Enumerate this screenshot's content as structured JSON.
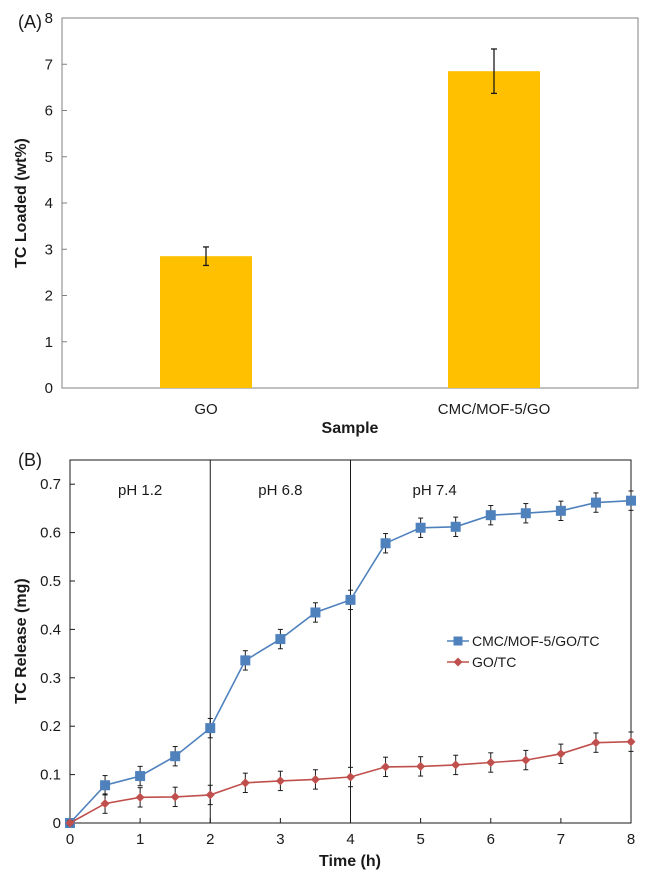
{
  "chart_data": [
    {
      "panel": "(A)",
      "type": "bar",
      "title": "",
      "xlabel": "Sample",
      "ylabel": "TC Loaded (wt%)",
      "ylim": [
        0,
        8
      ],
      "yticks": [
        "0",
        "1",
        "2",
        "3",
        "4",
        "5",
        "6",
        "7",
        "8"
      ],
      "categories": [
        "GO",
        "CMC/MOF-5/GO"
      ],
      "values": [
        2.85,
        6.85
      ],
      "errors": [
        0.2,
        0.48
      ],
      "bar_color": "#FFC000",
      "grid": false
    },
    {
      "panel": "(B)",
      "type": "line",
      "title": "",
      "xlabel": "Time (h)",
      "ylabel": "TC Release (mg)",
      "xlim": [
        0,
        8
      ],
      "ylim": [
        0,
        0.75
      ],
      "xticks": [
        "0",
        "1",
        "2",
        "3",
        "4",
        "5",
        "6",
        "7",
        "8"
      ],
      "yticks": [
        "0",
        "0.1",
        "0.2",
        "0.3",
        "0.4",
        "0.5",
        "0.6",
        "0.7"
      ],
      "x": [
        0,
        0.5,
        1,
        1.5,
        2,
        2.5,
        3,
        3.5,
        4,
        4.5,
        5,
        5.5,
        6,
        6.5,
        7,
        7.5,
        8
      ],
      "series": [
        {
          "name": "CMC/MOF-5/GO/TC",
          "color": "#4F81BD",
          "marker": "square",
          "values": [
            0.0,
            0.078,
            0.097,
            0.138,
            0.196,
            0.336,
            0.38,
            0.435,
            0.461,
            0.578,
            0.61,
            0.612,
            0.636,
            0.64,
            0.645,
            0.662,
            0.666
          ],
          "errors": [
            0.005,
            0.02,
            0.02,
            0.02,
            0.02,
            0.02,
            0.02,
            0.02,
            0.02,
            0.02,
            0.02,
            0.02,
            0.02,
            0.02,
            0.02,
            0.02,
            0.02
          ]
        },
        {
          "name": "GO/TC",
          "color": "#C0504D",
          "marker": "diamond",
          "values": [
            0.0,
            0.04,
            0.053,
            0.054,
            0.058,
            0.083,
            0.087,
            0.09,
            0.095,
            0.116,
            0.117,
            0.12,
            0.125,
            0.13,
            0.143,
            0.166,
            0.168
          ],
          "errors": [
            0.005,
            0.02,
            0.02,
            0.02,
            0.02,
            0.02,
            0.02,
            0.02,
            0.02,
            0.02,
            0.02,
            0.02,
            0.02,
            0.02,
            0.02,
            0.02,
            0.02
          ]
        }
      ],
      "dividers": [
        2,
        4
      ],
      "regions": [
        {
          "label": "pH 1.2",
          "x_center": 1.0
        },
        {
          "label": "pH 6.8",
          "x_center": 3.0
        },
        {
          "label": "pH 7.4",
          "x_center": 5.2
        }
      ],
      "legend_position": "center-right",
      "grid": false
    }
  ]
}
